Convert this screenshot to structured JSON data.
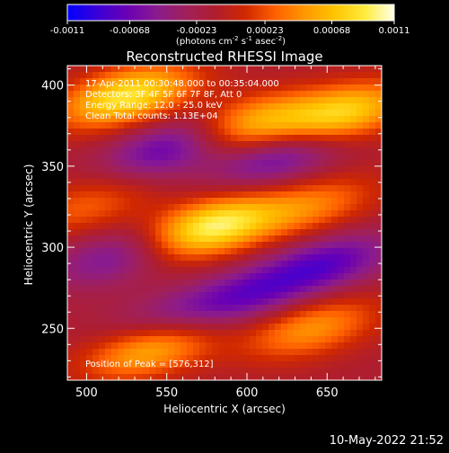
{
  "colorbar": {
    "tick_labels": [
      "-0.0011",
      "-0.00068",
      "-0.00023",
      "0.00023",
      "0.00068",
      "0.0011"
    ],
    "unit_label": "(photons cm",
    "unit_sup1": "-2",
    "unit_mid": " s",
    "unit_sup2": "-1",
    "unit_end": " asec",
    "unit_sup3": "-2",
    "unit_close": ")",
    "colors": [
      "#0000ff",
      "#3a00d8",
      "#6a00b4",
      "#8a1b8f",
      "#a0205a",
      "#b01e2c",
      "#d02800",
      "#ff6000",
      "#ff9800",
      "#ffc400",
      "#ffeb3c",
      "#ffffe8"
    ]
  },
  "chart_data": {
    "type": "heatmap",
    "title": "Reconstructed RHESSI Image",
    "xlabel": "Heliocentric X (arcsec)",
    "ylabel": "Heliocentric Y (arcsec)",
    "xlim": [
      488,
      684
    ],
    "ylim": [
      218,
      412
    ],
    "x_ticks": [
      500,
      550,
      600,
      650
    ],
    "y_ticks": [
      250,
      300,
      350,
      400
    ],
    "x_tick_labels": [
      "500",
      "550",
      "600",
      "650"
    ],
    "y_tick_labels": [
      "250",
      "300",
      "350",
      "400"
    ],
    "value_range": [
      -0.0011,
      0.0011
    ],
    "annotations": [
      "17-Apr-2011 00:30:48.000 to 00:35:04.000",
      "Detectors: 3F 4F 5F 6F 7F 8F, Att 0",
      "Energy Range: 12.0 - 25.0 keV",
      "Clean     Total counts: 1.13E+04"
    ],
    "peak_label": "Position of Peak = [576,312]",
    "peak": {
      "x": 576,
      "y": 312,
      "value": 0.0011
    },
    "bright_bands": [
      {
        "x": 525,
        "y": 393,
        "value": 0.001
      },
      {
        "x": 660,
        "y": 382,
        "value": 0.0009
      },
      {
        "x": 600,
        "y": 375,
        "value": 0.0008
      },
      {
        "x": 576,
        "y": 312,
        "value": 0.0011
      },
      {
        "x": 640,
        "y": 325,
        "value": 0.0005
      },
      {
        "x": 540,
        "y": 238,
        "value": 0.0008
      },
      {
        "x": 640,
        "y": 250,
        "value": 0.0006
      },
      {
        "x": 500,
        "y": 325,
        "value": 0.0004
      }
    ],
    "dark_bands": [
      {
        "x": 555,
        "y": 362,
        "value": -0.0007
      },
      {
        "x": 620,
        "y": 356,
        "value": -0.0006
      },
      {
        "x": 520,
        "y": 295,
        "value": -0.0005
      },
      {
        "x": 650,
        "y": 290,
        "value": -0.0006
      },
      {
        "x": 600,
        "y": 270,
        "value": -0.0005
      },
      {
        "x": 550,
        "y": 255,
        "value": -0.0004
      }
    ]
  },
  "footer": {
    "timestamp": "10-May-2022 21:52"
  }
}
